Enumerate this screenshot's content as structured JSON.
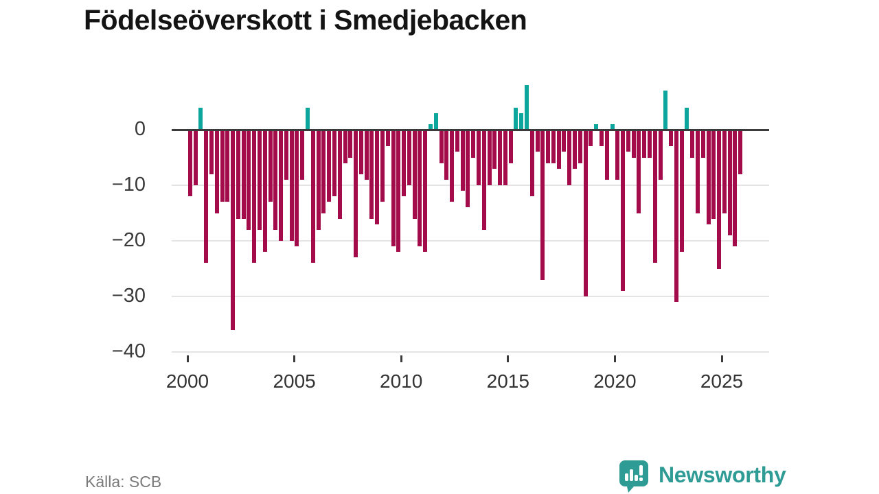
{
  "title": "Födelseöverskott i Smedjebacken",
  "source": "Källa: SCB",
  "logo": {
    "text": "Newsworthy"
  },
  "colors": {
    "negative_bar": "#a30b4b",
    "positive_bar": "#0ca69d",
    "zero_axis": "#3b3b3b",
    "grid": "#e4e4e4",
    "axis_label": "#3a3a3a",
    "source_text": "#7a7a7a",
    "logo_teal": "#2e9b94",
    "background": "#ffffff"
  },
  "chart_data": {
    "type": "bar",
    "title": "Födelseöverskott i Smedjebacken",
    "frequency": "quarterly",
    "start_period": "2000Q1",
    "end_period": "2025Q4",
    "xlabel": "",
    "ylabel": "",
    "ylim": [
      -40,
      8.8
    ],
    "grid": true,
    "legend": false,
    "x_tick_labels": [
      "2000",
      "2005",
      "2010",
      "2015",
      "2020",
      "2025"
    ],
    "y_tick_labels": [
      "0",
      "−10",
      "−20",
      "−30",
      "−40"
    ],
    "y_tick_values": [
      0,
      -10,
      -20,
      -30,
      -40
    ],
    "values": [
      -12,
      -10,
      4,
      -24,
      -8,
      -15,
      -13,
      -13,
      -36,
      -16,
      -16,
      -18,
      -24,
      -18,
      -22,
      -13,
      -18,
      -20,
      -9,
      -20,
      -21,
      -9,
      4,
      -24,
      -18,
      -15,
      -13,
      -12,
      -16,
      -6,
      -5,
      -23,
      -8,
      -9,
      -16,
      -17,
      -13,
      -3,
      -21,
      -22,
      -12,
      -10,
      -16,
      -21,
      -22,
      1,
      3,
      -6,
      -9,
      -13,
      -4,
      -11,
      -14,
      -5,
      -10,
      -18,
      -10,
      -7,
      -10,
      -10,
      -6,
      4,
      3,
      8,
      -12,
      -4,
      -27,
      -6,
      -6,
      -7,
      -4,
      -10,
      -7,
      -6,
      -30,
      -3,
      1,
      -3,
      -9,
      1,
      -9,
      -29,
      -4,
      -5,
      -15,
      -5,
      -5,
      -24,
      -9,
      7,
      -3,
      -31,
      -22,
      4,
      -5,
      -15,
      -5,
      -17,
      -16,
      -25,
      -15,
      -19,
      -21,
      -8
    ]
  }
}
